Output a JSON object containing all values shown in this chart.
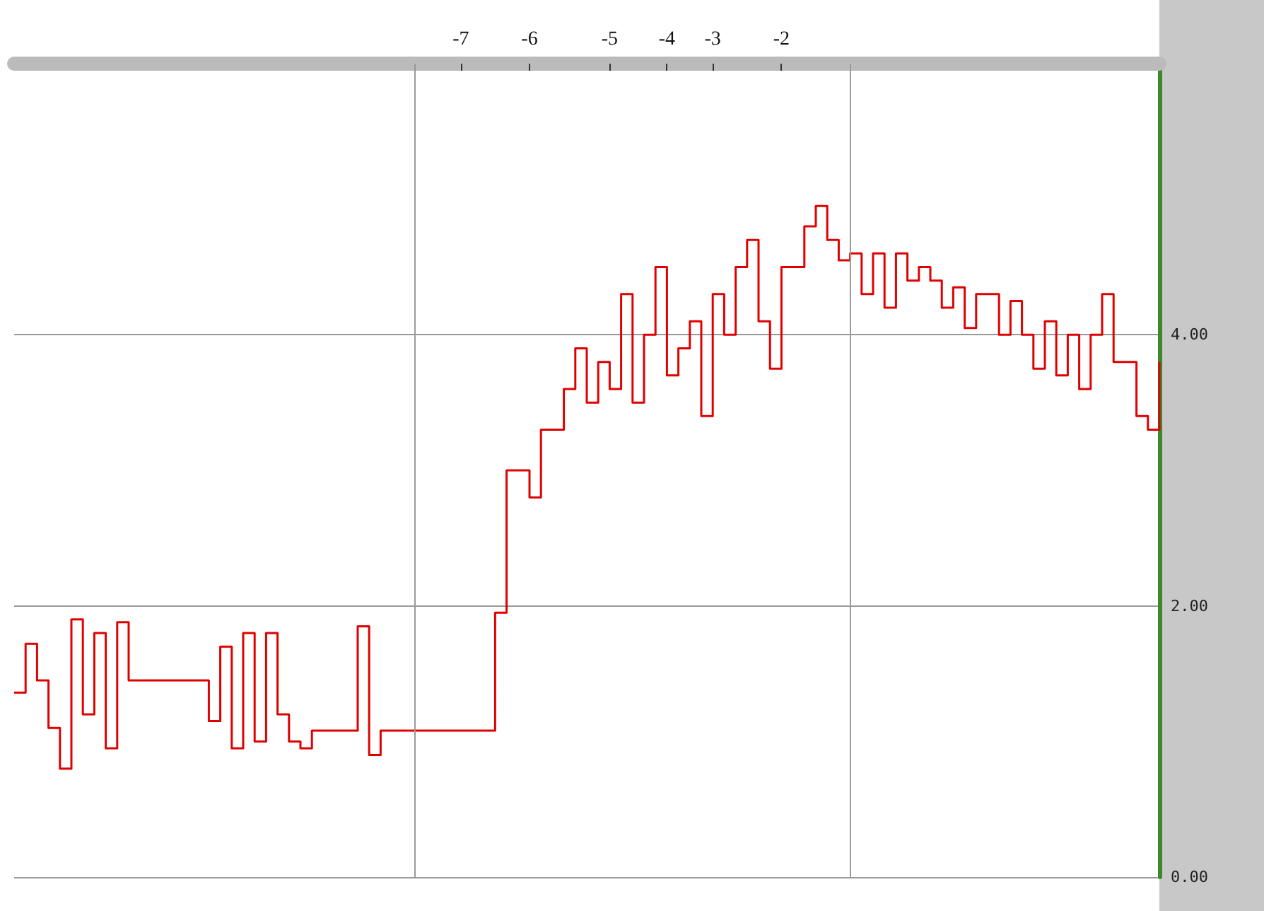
{
  "chart_data": {
    "type": "step",
    "color": "#e00000",
    "categories": [
      null,
      null,
      null,
      null,
      null,
      null,
      null,
      null,
      null,
      null,
      null,
      null,
      null,
      null,
      null,
      null,
      null,
      null,
      null,
      null,
      null,
      null,
      null,
      null,
      null,
      null,
      null,
      null,
      null,
      null,
      null,
      null,
      null,
      null,
      null,
      null,
      null,
      null,
      null,
      "-7",
      null,
      null,
      null,
      null,
      null,
      "-6",
      null,
      null,
      null,
      null,
      null,
      null,
      "-5",
      null,
      null,
      null,
      null,
      "-4",
      null,
      null,
      null,
      "-3",
      null,
      null,
      null,
      null,
      null,
      "-2",
      null,
      null,
      null,
      null,
      null,
      null,
      null,
      null,
      null,
      null,
      null,
      null,
      null,
      null,
      null,
      null,
      null,
      null,
      null,
      null,
      null,
      null,
      null,
      null,
      null,
      null,
      null,
      null,
      null,
      null,
      null,
      null,
      null
    ],
    "values": [
      1.36,
      1.72,
      1.45,
      1.1,
      0.8,
      1.9,
      1.2,
      1.8,
      0.95,
      1.88,
      1.45,
      1.45,
      1.45,
      1.45,
      1.45,
      1.45,
      1.45,
      1.15,
      1.7,
      0.95,
      1.8,
      1.0,
      1.8,
      1.2,
      1.0,
      0.95,
      1.08,
      1.08,
      1.08,
      1.08,
      1.85,
      0.9,
      1.08,
      1.08,
      1.08,
      1.08,
      1.08,
      1.08,
      1.08,
      1.08,
      1.08,
      1.08,
      1.95,
      3.0,
      3.0,
      2.8,
      3.3,
      3.3,
      3.6,
      3.9,
      3.5,
      3.8,
      3.6,
      4.3,
      3.5,
      4.0,
      4.5,
      3.7,
      3.9,
      4.1,
      3.4,
      4.3,
      4.0,
      4.5,
      4.7,
      4.1,
      3.75,
      4.5,
      4.5,
      4.8,
      4.95,
      4.7,
      4.55,
      4.6,
      4.3,
      4.6,
      4.2,
      4.6,
      4.4,
      4.5,
      4.4,
      4.2,
      4.35,
      4.05,
      4.3,
      4.3,
      4.0,
      4.25,
      4.0,
      3.75,
      4.1,
      3.7,
      4.0,
      3.6,
      4.0,
      4.3,
      3.8,
      3.8,
      3.4,
      3.3,
      3.8
    ],
    "ylim": [
      0,
      6
    ],
    "yticks": [
      {
        "value": 0,
        "label": "0.00"
      },
      {
        "value": 2,
        "label": "2.00"
      },
      {
        "value": 4,
        "label": "4.00"
      }
    ],
    "grid": true,
    "marker": "none",
    "line_style": "solid"
  }
}
